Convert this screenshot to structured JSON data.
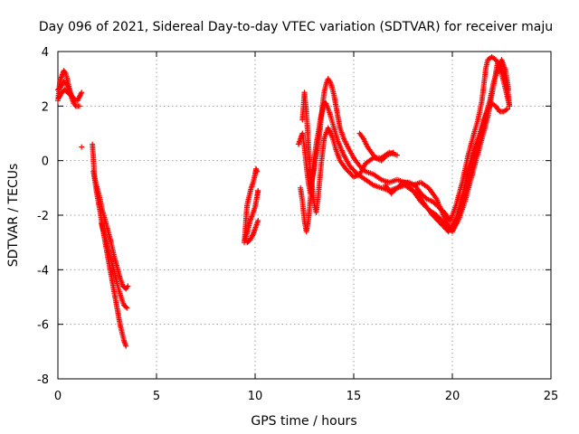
{
  "chart_data": {
    "type": "scatter",
    "title": "Day 096 of 2021, Sidereal Day-to-day VTEC variation (SDTVAR) for receiver maju",
    "xlabel": "GPS time / hours",
    "ylabel": "SDTVAR / TECUs",
    "xlim": [
      0,
      25
    ],
    "ylim": [
      -8,
      4
    ],
    "xticks": [
      0,
      5,
      10,
      15,
      20,
      25
    ],
    "yticks": [
      -8,
      -6,
      -4,
      -2,
      0,
      2,
      4
    ],
    "grid": true,
    "marker": "+",
    "series": [
      {
        "name": "SDTVAR",
        "color": "#ff0000",
        "segments": [
          [
            [
              0.0,
              2.2
            ],
            [
              0.1,
              2.9
            ],
            [
              0.2,
              3.1
            ],
            [
              0.3,
              3.3
            ],
            [
              0.4,
              3.2
            ],
            [
              0.5,
              2.9
            ],
            [
              0.6,
              2.6
            ],
            [
              0.7,
              2.3
            ],
            [
              0.8,
              2.1
            ],
            [
              0.9,
              2.0
            ],
            [
              1.1,
              2.0
            ]
          ],
          [
            [
              0.0,
              2.6
            ],
            [
              0.15,
              2.7
            ],
            [
              0.3,
              2.9
            ],
            [
              0.45,
              2.8
            ],
            [
              0.6,
              2.5
            ],
            [
              0.75,
              2.3
            ],
            [
              0.85,
              2.2
            ],
            [
              1.0,
              2.2
            ],
            [
              1.2,
              2.5
            ]
          ],
          [
            [
              0.05,
              2.3
            ],
            [
              0.2,
              2.5
            ],
            [
              0.35,
              2.6
            ],
            [
              0.5,
              2.5
            ],
            [
              0.65,
              2.4
            ],
            [
              0.8,
              2.3
            ]
          ],
          [
            [
              1.2,
              0.5
            ]
          ],
          [
            [
              1.75,
              0.6
            ],
            [
              1.8,
              0.1
            ],
            [
              1.85,
              -0.6
            ],
            [
              1.95,
              -1.1
            ],
            [
              2.05,
              -1.5
            ],
            [
              2.15,
              -1.9
            ],
            [
              2.25,
              -2.4
            ],
            [
              2.35,
              -2.8
            ],
            [
              2.45,
              -3.2
            ],
            [
              2.55,
              -3.6
            ],
            [
              2.65,
              -4.0
            ],
            [
              2.75,
              -4.4
            ],
            [
              2.85,
              -4.8
            ],
            [
              2.95,
              -5.2
            ],
            [
              3.05,
              -5.6
            ],
            [
              3.15,
              -6.0
            ],
            [
              3.25,
              -6.3
            ],
            [
              3.35,
              -6.6
            ],
            [
              3.45,
              -6.8
            ]
          ],
          [
            [
              1.8,
              -0.4
            ],
            [
              1.95,
              -0.9
            ],
            [
              2.1,
              -1.3
            ],
            [
              2.25,
              -1.8
            ],
            [
              2.4,
              -2.2
            ],
            [
              2.55,
              -2.6
            ],
            [
              2.7,
              -3.0
            ],
            [
              2.85,
              -3.5
            ],
            [
              3.0,
              -3.9
            ],
            [
              3.15,
              -4.3
            ],
            [
              3.3,
              -4.6
            ],
            [
              3.45,
              -4.7
            ],
            [
              3.55,
              -4.6
            ]
          ],
          [
            [
              2.2,
              -2.3
            ],
            [
              2.4,
              -2.8
            ],
            [
              2.6,
              -3.4
            ],
            [
              2.8,
              -3.9
            ],
            [
              3.0,
              -4.5
            ],
            [
              3.2,
              -5.0
            ],
            [
              3.35,
              -5.3
            ],
            [
              3.5,
              -5.4
            ]
          ],
          [
            [
              9.45,
              -3.0
            ],
            [
              9.5,
              -2.6
            ],
            [
              9.55,
              -2.0
            ],
            [
              9.6,
              -1.6
            ],
            [
              9.7,
              -1.3
            ],
            [
              9.8,
              -1.0
            ],
            [
              9.9,
              -0.8
            ],
            [
              10.0,
              -0.5
            ],
            [
              10.05,
              -0.3
            ],
            [
              10.1,
              -0.4
            ]
          ],
          [
            [
              9.5,
              -2.9
            ],
            [
              9.65,
              -2.5
            ],
            [
              9.75,
              -2.2
            ],
            [
              9.85,
              -2.0
            ],
            [
              10.0,
              -1.7
            ],
            [
              10.1,
              -1.3
            ],
            [
              10.15,
              -1.1
            ]
          ],
          [
            [
              9.6,
              -3.0
            ],
            [
              9.75,
              -2.9
            ],
            [
              9.9,
              -2.7
            ],
            [
              10.0,
              -2.5
            ],
            [
              10.1,
              -2.3
            ],
            [
              10.15,
              -2.2
            ]
          ],
          [
            [
              12.2,
              0.6
            ],
            [
              12.3,
              0.8
            ],
            [
              12.4,
              1.0
            ],
            [
              12.5,
              0.5
            ],
            [
              12.6,
              -0.2
            ],
            [
              12.7,
              -0.8
            ],
            [
              12.8,
              -1.2
            ],
            [
              12.9,
              -0.6
            ],
            [
              13.0,
              -0.3
            ],
            [
              13.1,
              0.2
            ],
            [
              13.2,
              0.6
            ],
            [
              13.3,
              1.2
            ],
            [
              13.4,
              1.9
            ],
            [
              13.5,
              2.5
            ],
            [
              13.6,
              2.8
            ],
            [
              13.7,
              3.0
            ],
            [
              13.8,
              2.9
            ],
            [
              13.9,
              2.7
            ],
            [
              14.0,
              2.4
            ],
            [
              14.1,
              2.0
            ],
            [
              14.2,
              1.6
            ],
            [
              14.3,
              1.2
            ],
            [
              14.5,
              0.8
            ],
            [
              14.7,
              0.5
            ],
            [
              15.0,
              0.1
            ],
            [
              15.3,
              -0.2
            ],
            [
              15.6,
              -0.4
            ],
            [
              16.0,
              -0.5
            ],
            [
              16.4,
              -0.7
            ],
            [
              16.8,
              -0.8
            ],
            [
              17.2,
              -0.7
            ],
            [
              17.6,
              -0.8
            ],
            [
              18.0,
              -0.9
            ],
            [
              18.4,
              -0.8
            ],
            [
              18.8,
              -1.0
            ],
            [
              19.2,
              -1.4
            ],
            [
              19.6,
              -2.1
            ],
            [
              19.9,
              -2.5
            ],
            [
              20.2,
              -2.1
            ],
            [
              20.5,
              -1.3
            ],
            [
              20.8,
              -0.4
            ],
            [
              21.0,
              0.2
            ],
            [
              21.2,
              0.6
            ],
            [
              21.4,
              1.0
            ],
            [
              21.6,
              1.5
            ],
            [
              21.8,
              1.9
            ],
            [
              22.0,
              2.1
            ],
            [
              22.2,
              2.0
            ],
            [
              22.4,
              1.8
            ],
            [
              22.6,
              1.8
            ],
            [
              22.8,
              1.9
            ]
          ],
          [
            [
              12.3,
              -1.0
            ],
            [
              12.4,
              -1.5
            ],
            [
              12.5,
              -2.2
            ],
            [
              12.6,
              -2.6
            ],
            [
              12.7,
              -2.2
            ],
            [
              12.8,
              -1.4
            ],
            [
              12.9,
              -0.7
            ],
            [
              13.0,
              0.1
            ],
            [
              13.1,
              0.6
            ],
            [
              13.2,
              1.0
            ],
            [
              13.3,
              1.5
            ],
            [
              13.4,
              1.8
            ],
            [
              13.5,
              2.1
            ],
            [
              13.6,
              2.1
            ],
            [
              13.8,
              1.7
            ],
            [
              14.0,
              1.2
            ],
            [
              14.2,
              0.7
            ],
            [
              14.5,
              0.2
            ],
            [
              14.8,
              -0.2
            ],
            [
              15.2,
              -0.5
            ],
            [
              15.6,
              -0.7
            ],
            [
              16.0,
              -0.9
            ],
            [
              16.4,
              -1.0
            ],
            [
              16.8,
              -1.1
            ],
            [
              17.2,
              -1.0
            ],
            [
              17.6,
              -0.9
            ],
            [
              18.0,
              -1.1
            ],
            [
              18.4,
              -1.5
            ],
            [
              18.8,
              -1.8
            ],
            [
              19.2,
              -2.0
            ],
            [
              19.6,
              -2.3
            ],
            [
              20.0,
              -2.6
            ],
            [
              20.3,
              -2.2
            ],
            [
              20.6,
              -1.6
            ],
            [
              20.9,
              -0.8
            ],
            [
              21.2,
              0.0
            ],
            [
              21.5,
              0.8
            ],
            [
              21.8,
              1.6
            ],
            [
              22.0,
              2.4
            ],
            [
              22.2,
              3.2
            ],
            [
              22.3,
              3.6
            ],
            [
              22.5,
              3.2
            ],
            [
              22.7,
              2.6
            ],
            [
              22.9,
              2.0
            ]
          ],
          [
            [
              12.4,
              1.5
            ],
            [
              12.5,
              2.5
            ],
            [
              12.6,
              1.8
            ],
            [
              12.7,
              0.6
            ],
            [
              12.8,
              -0.4
            ],
            [
              12.9,
              -1.0
            ],
            [
              13.0,
              -1.6
            ],
            [
              13.1,
              -1.9
            ],
            [
              13.2,
              -1.3
            ],
            [
              13.3,
              -0.5
            ],
            [
              13.4,
              0.2
            ],
            [
              13.5,
              0.8
            ],
            [
              13.7,
              1.2
            ],
            [
              13.9,
              0.9
            ],
            [
              14.1,
              0.4
            ],
            [
              14.3,
              0.0
            ],
            [
              14.6,
              -0.3
            ],
            [
              15.0,
              -0.6
            ],
            [
              15.3,
              -0.5
            ],
            [
              15.6,
              -0.1
            ],
            [
              16.0,
              0.1
            ],
            [
              16.4,
              0.1
            ],
            [
              16.8,
              0.3
            ],
            [
              17.2,
              0.2
            ]
          ],
          [
            [
              15.3,
              1.0
            ],
            [
              15.5,
              0.8
            ],
            [
              15.7,
              0.5
            ],
            [
              15.9,
              0.3
            ],
            [
              16.1,
              0.1
            ],
            [
              16.4,
              0.0
            ],
            [
              16.7,
              0.2
            ],
            [
              17.0,
              0.3
            ]
          ],
          [
            [
              17.8,
              -1.0
            ],
            [
              18.2,
              -1.2
            ],
            [
              18.6,
              -1.6
            ],
            [
              19.0,
              -2.0
            ],
            [
              19.4,
              -2.3
            ],
            [
              19.8,
              -2.6
            ],
            [
              20.1,
              -2.4
            ],
            [
              20.4,
              -1.8
            ],
            [
              20.7,
              -1.0
            ],
            [
              21.0,
              -0.2
            ],
            [
              21.3,
              0.6
            ],
            [
              21.6,
              1.4
            ],
            [
              21.9,
              2.2
            ],
            [
              22.1,
              2.9
            ],
            [
              22.3,
              3.3
            ],
            [
              22.5,
              3.7
            ],
            [
              22.7,
              3.3
            ],
            [
              22.85,
              2.6
            ]
          ],
          [
            [
              16.6,
              -0.9
            ],
            [
              16.9,
              -1.2
            ],
            [
              17.2,
              -1.0
            ],
            [
              17.5,
              -0.8
            ],
            [
              17.8,
              -0.8
            ],
            [
              18.1,
              -0.9
            ],
            [
              18.4,
              -1.2
            ],
            [
              18.7,
              -1.4
            ],
            [
              19.0,
              -1.5
            ],
            [
              19.3,
              -1.7
            ],
            [
              19.6,
              -1.9
            ],
            [
              19.9,
              -2.2
            ],
            [
              20.2,
              -1.6
            ],
            [
              20.5,
              -0.8
            ],
            [
              20.8,
              0.2
            ],
            [
              21.1,
              1.0
            ],
            [
              21.3,
              1.5
            ],
            [
              21.5,
              2.2
            ],
            [
              21.6,
              2.8
            ],
            [
              21.7,
              3.4
            ],
            [
              21.8,
              3.7
            ],
            [
              22.0,
              3.8
            ],
            [
              22.2,
              3.7
            ],
            [
              22.4,
              3.5
            ],
            [
              22.6,
              3.2
            ],
            [
              22.8,
              2.6
            ],
            [
              22.9,
              2.0
            ]
          ]
        ]
      }
    ]
  }
}
